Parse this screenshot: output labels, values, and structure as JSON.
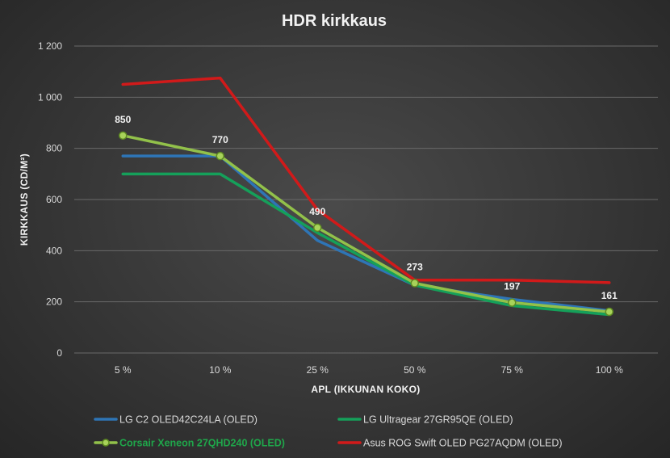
{
  "chart_data": {
    "type": "line",
    "title": "HDR kirkkaus",
    "xlabel": "APL (IKKUNAN KOKO)",
    "ylabel": "KIRKKAUS (CD/M²)",
    "categories": [
      "5 %",
      "10 %",
      "25 %",
      "50 %",
      "75 %",
      "100 %"
    ],
    "ylim": [
      0,
      1200
    ],
    "yticks": [
      0,
      200,
      400,
      600,
      800,
      1000,
      1200
    ],
    "ytick_labels": [
      "0",
      "200",
      "400",
      "600",
      "800",
      "1 000",
      "1 200"
    ],
    "grid": true,
    "legend_position": "bottom",
    "series": [
      {
        "name": "LG C2 OLED42C24LA (OLED)",
        "color": "#2e75b6",
        "values": [
          770,
          770,
          440,
          265,
          210,
          165
        ],
        "markers": false
      },
      {
        "name": "LG Ultragear 27GR95QE (OLED)",
        "color": "#15a05a",
        "values": [
          700,
          700,
          470,
          265,
          185,
          150
        ],
        "markers": false
      },
      {
        "name": "Corsair Xeneon 27QHD240 (OLED)",
        "color": "#92c14a",
        "values": [
          850,
          770,
          490,
          273,
          197,
          161
        ],
        "markers": true,
        "data_labels": [
          "850",
          "770",
          "490",
          "273",
          "197",
          "161"
        ]
      },
      {
        "name": "Asus ROG Swift OLED PG27AQDM (OLED)",
        "color": "#d11a1a",
        "values": [
          1050,
          1075,
          560,
          285,
          285,
          275
        ],
        "markers": false
      }
    ]
  }
}
